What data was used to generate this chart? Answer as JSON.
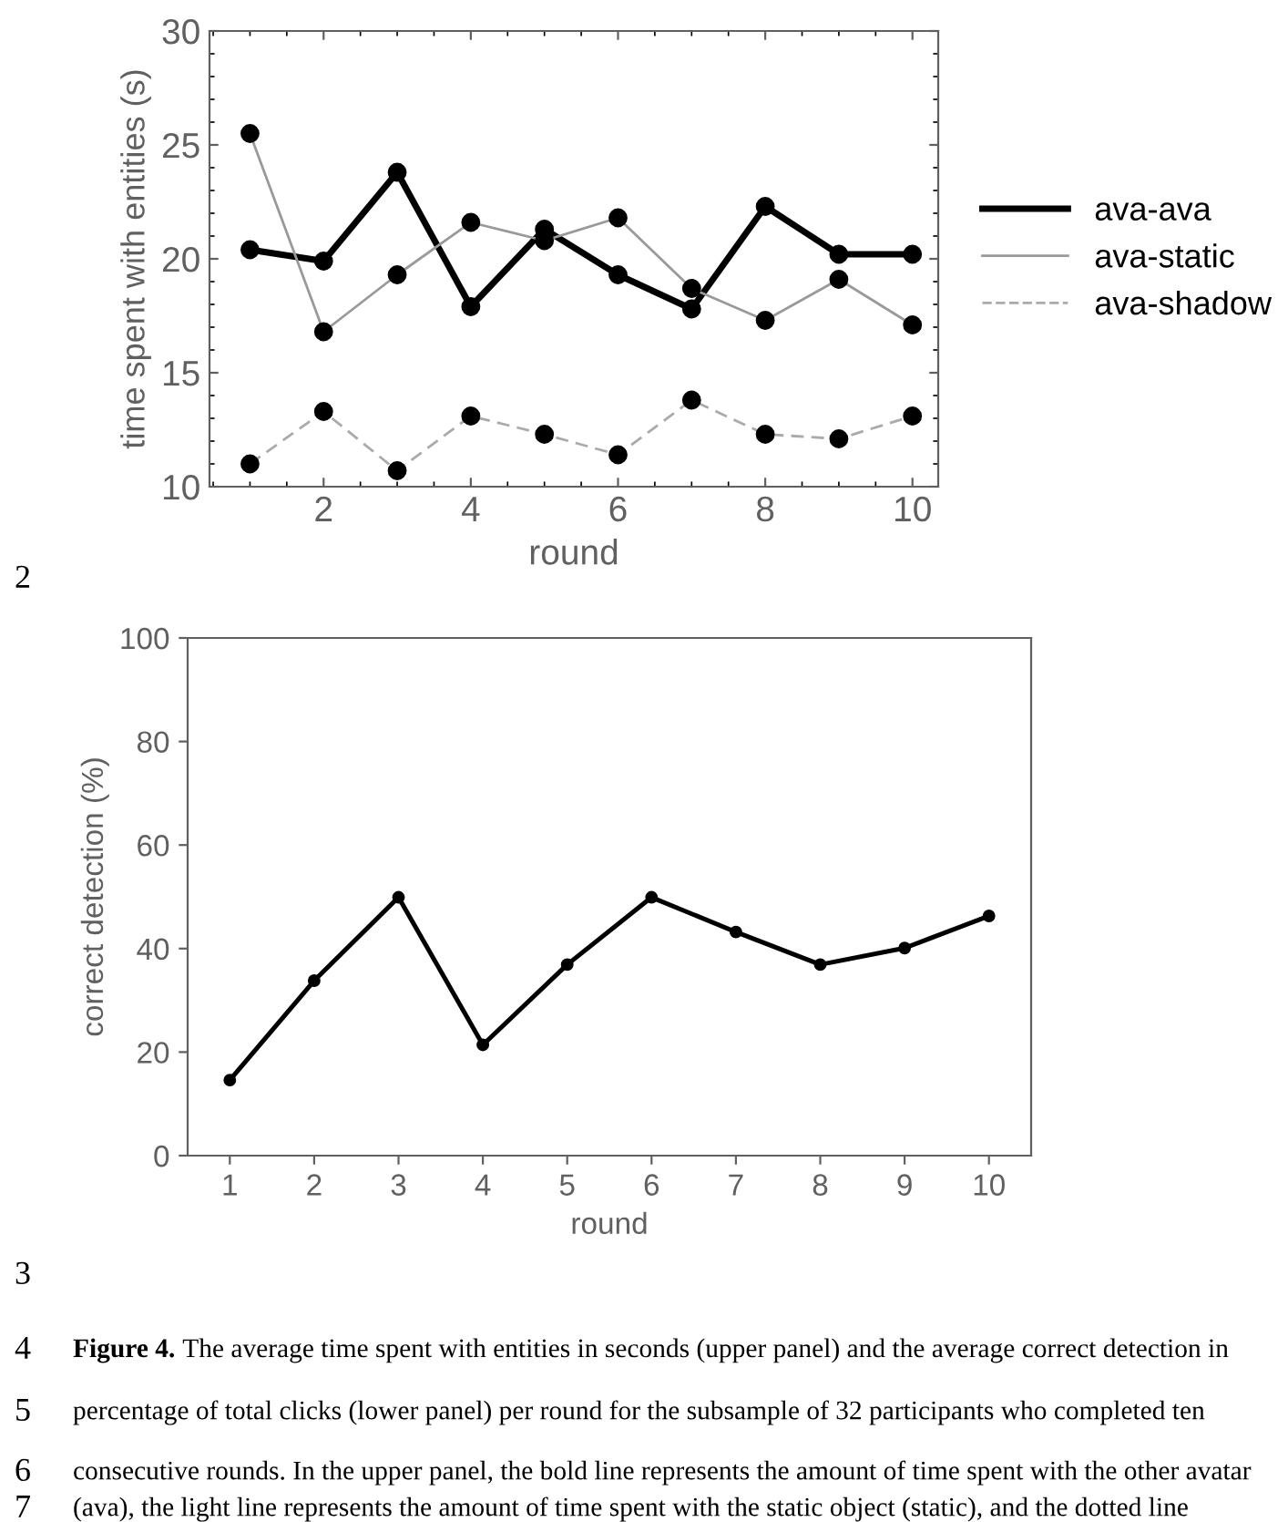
{
  "chart_data": [
    {
      "type": "line",
      "xlabel": "round",
      "ylabel": "time spent with entities (s)",
      "x": [
        1,
        2,
        3,
        4,
        5,
        6,
        7,
        8,
        9,
        10
      ],
      "xlim": [
        0.45,
        10.35
      ],
      "xticks": [
        2,
        4,
        6,
        8,
        10
      ],
      "ylim": [
        10,
        30
      ],
      "yticks": [
        10,
        15,
        20,
        25,
        30
      ],
      "marker": "circle",
      "legend": "right",
      "grid": false,
      "series": [
        {
          "name": "ava-ava",
          "color": "#000000",
          "line_style": "solid",
          "values": [
            20.4,
            19.9,
            23.8,
            17.9,
            21.3,
            19.3,
            17.8,
            22.3,
            20.2,
            20.2
          ]
        },
        {
          "name": "ava-static",
          "color": "#999999",
          "line_style": "solid",
          "values": [
            25.5,
            16.8,
            19.3,
            21.6,
            20.8,
            21.8,
            18.7,
            17.3,
            19.1,
            17.1
          ]
        },
        {
          "name": "ava-shadow",
          "color": "#aaaaaa",
          "line_style": "dashed",
          "values": [
            11.0,
            13.3,
            10.7,
            13.1,
            12.3,
            11.4,
            13.8,
            12.3,
            12.1,
            13.1
          ]
        }
      ],
      "annotations": [
        "2"
      ]
    },
    {
      "type": "line",
      "xlabel": "round",
      "ylabel": "correct detection (%)",
      "x": [
        1,
        2,
        3,
        4,
        5,
        6,
        7,
        8,
        9,
        10
      ],
      "xlim": [
        0.5,
        10.5
      ],
      "xticks": [
        1,
        2,
        3,
        4,
        5,
        6,
        7,
        8,
        9,
        10
      ],
      "ylim": [
        0,
        100
      ],
      "yticks": [
        0,
        20,
        40,
        60,
        80,
        100
      ],
      "marker": "circle",
      "grid": false,
      "series": [
        {
          "color": "#000000",
          "line_style": "solid",
          "values": [
            14.6,
            33.8,
            49.9,
            21.4,
            36.9,
            49.9,
            43.2,
            36.9,
            40.1,
            46.3
          ]
        }
      ],
      "annotations": [
        "3",
        "4",
        "Figure 4.",
        "The average time spent with entities in seconds (upper panel) and the average correct detection in",
        "5",
        "percentage of total clicks (lower panel) per round for the subsample of 32 participants who completed ten",
        "6",
        "consecutive rounds. In the upper panel, the bold line represents the amount of time spent with the other avatar",
        "7",
        "(ava), the light line represents the amount of time spent with the static object (static), and the dotted line"
      ]
    }
  ]
}
